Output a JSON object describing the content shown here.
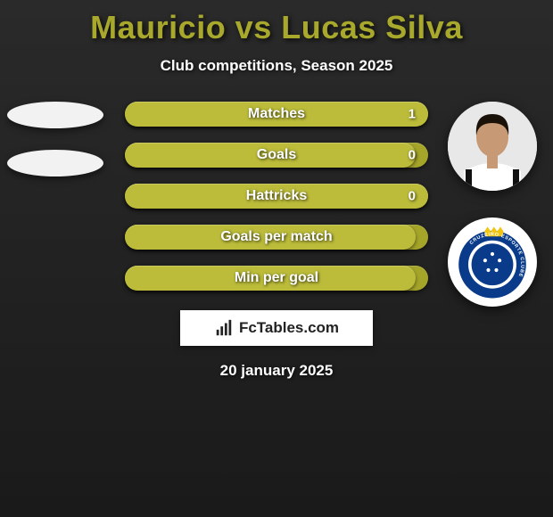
{
  "title_color": "#a8a82c",
  "title": "Mauricio vs Lucas Silva",
  "subtitle": "Club competitions, Season 2025",
  "date": "20 january 2025",
  "watermark": "FcTables.com",
  "stats": {
    "track_color": "#a5a52a",
    "fill_color": "#bcbc3a",
    "rows": [
      {
        "label": "Matches",
        "value": "1",
        "fill_pct": 100
      },
      {
        "label": "Goals",
        "value": "0",
        "fill_pct": 96
      },
      {
        "label": "Hattricks",
        "value": "0",
        "fill_pct": 100
      },
      {
        "label": "Goals per match",
        "value": "",
        "fill_pct": 96
      },
      {
        "label": "Min per goal",
        "value": "",
        "fill_pct": 96
      }
    ]
  },
  "left_placeholders": {
    "color": "#f2f2f2",
    "items": [
      {
        "name": "player1-photo-placeholder"
      },
      {
        "name": "player1-club-placeholder"
      }
    ]
  },
  "right_photos": {
    "player": {
      "name": "player2-photo",
      "bg": "#e8e8e8",
      "jersey": "#ffffff",
      "stripe": "#111111",
      "skin": "#c79a75",
      "hair": "#1a1208"
    },
    "club": {
      "name": "player2-club-crest",
      "bg": "#ffffff",
      "ring": "#0a3b8a",
      "inner": "#0a3b8a",
      "crown": "#f1c40f",
      "text": "CRUZEIRO ESPORTE CLUBE",
      "text_color": "#ffffff"
    }
  }
}
